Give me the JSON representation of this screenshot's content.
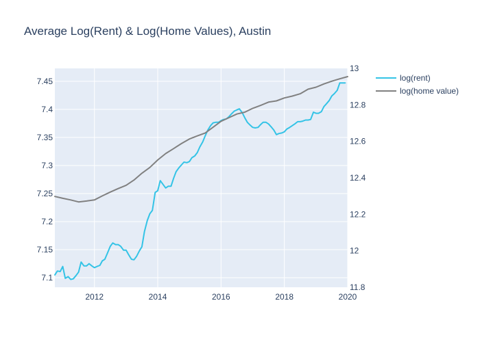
{
  "chart_data": {
    "type": "line",
    "title": "Average Log(Rent) & Log(Home Values), Austin",
    "xlabel": "",
    "ylabel": "",
    "y2label": "",
    "legend_position": "top-right",
    "grid": true,
    "colors": {
      "plot_bg": "#e5ecf6",
      "grid": "#ffffff",
      "text": "#2a3f5f"
    },
    "x_ticks": [
      "2012",
      "2014",
      "2016",
      "2018",
      "2020"
    ],
    "y_ticks": [
      "7.1",
      "7.15",
      "7.2",
      "7.25",
      "7.3",
      "7.35",
      "7.4",
      "7.45"
    ],
    "y2_ticks": [
      "11.8",
      "12",
      "12.2",
      "12.4",
      "12.6",
      "12.8",
      "13"
    ],
    "xlim": [
      2010.75,
      2020.0
    ],
    "ylim": [
      7.083,
      7.473
    ],
    "y2lim": [
      11.8,
      13.0
    ],
    "series": [
      {
        "name": "log(rent)",
        "axis": "left",
        "color": "#33c3e6",
        "x": [
          2010.75,
          2010.83,
          2010.92,
          2011.0,
          2011.08,
          2011.17,
          2011.25,
          2011.33,
          2011.42,
          2011.5,
          2011.58,
          2011.67,
          2011.75,
          2011.83,
          2011.92,
          2012.0,
          2012.08,
          2012.17,
          2012.25,
          2012.33,
          2012.42,
          2012.5,
          2012.58,
          2012.67,
          2012.75,
          2012.83,
          2012.92,
          2013.0,
          2013.08,
          2013.17,
          2013.25,
          2013.33,
          2013.42,
          2013.5,
          2013.58,
          2013.67,
          2013.75,
          2013.83,
          2013.92,
          2014.0,
          2014.08,
          2014.17,
          2014.25,
          2014.33,
          2014.42,
          2014.5,
          2014.58,
          2014.67,
          2014.75,
          2014.83,
          2014.92,
          2015.0,
          2015.08,
          2015.17,
          2015.25,
          2015.33,
          2015.42,
          2015.5,
          2015.58,
          2015.67,
          2015.75,
          2015.83,
          2015.92,
          2016.0,
          2016.08,
          2016.17,
          2016.25,
          2016.33,
          2016.42,
          2016.5,
          2016.58,
          2016.67,
          2016.75,
          2016.83,
          2016.92,
          2017.0,
          2017.08,
          2017.17,
          2017.25,
          2017.33,
          2017.42,
          2017.5,
          2017.58,
          2017.67,
          2017.75,
          2017.83,
          2017.92,
          2018.0,
          2018.08,
          2018.17,
          2018.25,
          2018.33,
          2018.42,
          2018.5,
          2018.58,
          2018.67,
          2018.75,
          2018.83,
          2018.92,
          2019.0,
          2019.08,
          2019.17,
          2019.25,
          2019.33,
          2019.42,
          2019.5,
          2019.58,
          2019.67,
          2019.75,
          2019.83,
          2019.92
        ],
        "values": [
          7.105,
          7.112,
          7.111,
          7.12,
          7.099,
          7.102,
          7.097,
          7.098,
          7.104,
          7.11,
          7.128,
          7.121,
          7.121,
          7.125,
          7.121,
          7.118,
          7.12,
          7.122,
          7.13,
          7.133,
          7.145,
          7.156,
          7.162,
          7.159,
          7.159,
          7.156,
          7.149,
          7.149,
          7.141,
          7.133,
          7.132,
          7.138,
          7.148,
          7.155,
          7.182,
          7.202,
          7.214,
          7.22,
          7.252,
          7.255,
          7.273,
          7.266,
          7.26,
          7.263,
          7.263,
          7.277,
          7.289,
          7.296,
          7.301,
          7.306,
          7.305,
          7.307,
          7.314,
          7.317,
          7.323,
          7.333,
          7.342,
          7.353,
          7.363,
          7.371,
          7.376,
          7.377,
          7.377,
          7.38,
          7.382,
          7.383,
          7.387,
          7.392,
          7.397,
          7.399,
          7.401,
          7.394,
          7.385,
          7.377,
          7.372,
          7.368,
          7.367,
          7.368,
          7.373,
          7.377,
          7.377,
          7.374,
          7.369,
          7.363,
          7.355,
          7.357,
          7.358,
          7.36,
          7.365,
          7.368,
          7.371,
          7.374,
          7.378,
          7.378,
          7.379,
          7.381,
          7.381,
          7.382,
          7.395,
          7.393,
          7.393,
          7.396,
          7.405,
          7.41,
          7.416,
          7.424,
          7.428,
          7.434,
          7.447,
          7.447,
          7.447
        ]
      },
      {
        "name": "log(home value)",
        "axis": "right",
        "color": "#808080",
        "x": [
          2010.75,
          2011.0,
          2011.25,
          2011.5,
          2011.75,
          2012.0,
          2012.25,
          2012.5,
          2012.75,
          2013.0,
          2013.25,
          2013.5,
          2013.75,
          2014.0,
          2014.25,
          2014.5,
          2014.75,
          2015.0,
          2015.25,
          2015.5,
          2015.75,
          2016.0,
          2016.25,
          2016.5,
          2016.75,
          2017.0,
          2017.25,
          2017.5,
          2017.75,
          2018.0,
          2018.25,
          2018.5,
          2018.75,
          2019.0,
          2019.25,
          2019.5,
          2019.75,
          2020.0
        ],
        "values": [
          12.298,
          12.288,
          12.279,
          12.268,
          12.273,
          12.279,
          12.301,
          12.322,
          12.341,
          12.359,
          12.388,
          12.425,
          12.457,
          12.498,
          12.533,
          12.56,
          12.588,
          12.613,
          12.63,
          12.646,
          12.678,
          12.71,
          12.73,
          12.75,
          12.76,
          12.781,
          12.797,
          12.815,
          12.822,
          12.838,
          12.848,
          12.861,
          12.886,
          12.897,
          12.915,
          12.93,
          12.943,
          12.955
        ]
      }
    ]
  }
}
